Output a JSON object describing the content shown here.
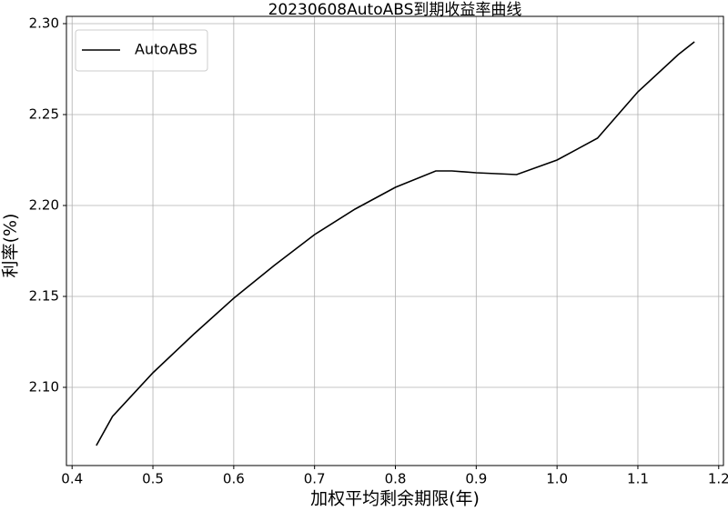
{
  "chart_data": {
    "type": "line",
    "title": "20230608AutoABS到期收益率曲线",
    "x_label": "加权平均剩余期限(年)",
    "y_label": "利率(%)",
    "x": [
      0.43,
      0.45,
      0.5,
      0.55,
      0.6,
      0.65,
      0.7,
      0.75,
      0.8,
      0.85,
      0.87,
      0.9,
      0.95,
      1.0,
      1.05,
      1.1,
      1.15,
      1.17
    ],
    "series": [
      {
        "name": "AutoABS",
        "color": "#000000",
        "values": [
          2.068,
          2.084,
          2.108,
          2.129,
          2.149,
          2.167,
          2.184,
          2.198,
          2.21,
          2.219,
          2.219,
          2.218,
          2.217,
          2.225,
          2.237,
          2.2625,
          2.283,
          2.29
        ]
      }
    ],
    "xlim": [
      0.393,
      1.207
    ],
    "ylim": [
      2.057,
      2.301
    ],
    "xticks": [
      0.4,
      0.5,
      0.6,
      0.7,
      0.8,
      0.9,
      {
        "value": 1.0,
        "label": "1.0"
      },
      1.1,
      1.2
    ],
    "yticks": [
      {
        "value": 2.1,
        "label": "2.10"
      },
      {
        "value": 2.15,
        "label": "2.15"
      },
      {
        "value": 2.2,
        "label": "2.20"
      },
      {
        "value": 2.25,
        "label": "2.25"
      },
      {
        "value": 2.3,
        "label": "2.30"
      }
    ],
    "grid": true,
    "legend": "upper left"
  }
}
